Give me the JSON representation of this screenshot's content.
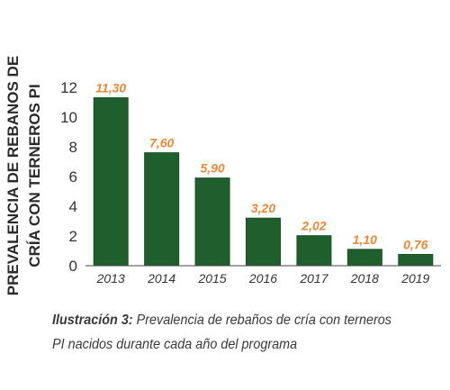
{
  "chart_data": {
    "type": "bar",
    "categories": [
      "2013",
      "2014",
      "2015",
      "2016",
      "2017",
      "2018",
      "2019"
    ],
    "values": [
      11.3,
      7.6,
      5.9,
      3.2,
      2.02,
      1.1,
      0.76
    ],
    "value_labels": [
      "11,30",
      "7,60",
      "5,90",
      "3,20",
      "2,02",
      "1,10",
      "0,76"
    ],
    "ylabel": "PREVALENCIA DE REBANOS DE CRÍA CON TERNEROS PI",
    "ylabel_lines": [
      "PREVALENCIA DE REBANOS DE",
      "CRÍA CON TERNEROS PI"
    ],
    "ylim": [
      0,
      12
    ],
    "yticks": [
      0,
      2,
      4,
      6,
      8,
      10,
      12
    ],
    "grid": false,
    "colors": {
      "bar": "#1f5f2d",
      "bar_edge": "#1a5226",
      "value_label": "#e8883a",
      "axis": "#444444",
      "tick_label": "#333333"
    }
  },
  "caption": {
    "lead": "Ilustración 3:",
    "text": " Prevalencia de rebaños de cría con terneros PI nacidos durante cada año del programa"
  }
}
